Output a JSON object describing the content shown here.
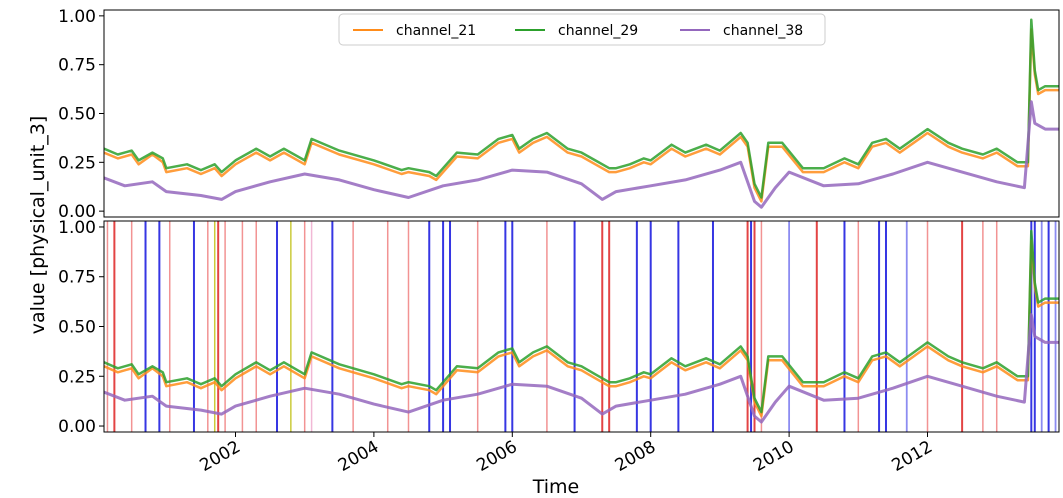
{
  "chart_data": {
    "type": "line",
    "xlabel": "Time",
    "ylabel": "value [physical_unit_3]",
    "xlim": [
      2000.1,
      2013.9
    ],
    "ylim": [
      -0.03,
      1.03
    ],
    "y_ticks": [
      0.0,
      0.25,
      0.5,
      0.75,
      1.0
    ],
    "y_tick_labels": [
      "0.00",
      "0.25",
      "0.50",
      "0.75",
      "1.00"
    ],
    "x_ticks": [
      2002,
      2004,
      2006,
      2008,
      2010,
      2012
    ],
    "x_tick_labels": [
      "2002",
      "2004",
      "2006",
      "2008",
      "2010",
      "2012"
    ],
    "legend_position": "top-center",
    "colors": {
      "channel_21": "#ff8c1a",
      "channel_29": "#2ca02c",
      "channel_38": "#9467bd",
      "marker_light_red": "#f08080",
      "marker_red": "#e03030",
      "marker_blue": "#2020e0",
      "marker_light_blue": "#8080f0",
      "marker_yellow": "#c8c830",
      "marker_pink": "#f0b0d0"
    },
    "series": [
      {
        "name": "channel_21",
        "x": [
          2000.1,
          2000.3,
          2000.5,
          2000.6,
          2000.8,
          2000.95,
          2001.0,
          2001.3,
          2001.5,
          2001.7,
          2001.8,
          2002.0,
          2002.3,
          2002.5,
          2002.7,
          2003.0,
          2003.1,
          2003.5,
          2004.0,
          2004.4,
          2004.5,
          2004.8,
          2004.9,
          2005.2,
          2005.5,
          2005.8,
          2006.0,
          2006.1,
          2006.3,
          2006.5,
          2006.8,
          2007.0,
          2007.2,
          2007.4,
          2007.5,
          2007.7,
          2007.9,
          2008.0,
          2008.3,
          2008.5,
          2008.8,
          2009.0,
          2009.3,
          2009.4,
          2009.5,
          2009.6,
          2009.7,
          2009.9,
          2010.2,
          2010.5,
          2010.8,
          2011.0,
          2011.2,
          2011.4,
          2011.6,
          2011.8,
          2012.0,
          2012.3,
          2012.5,
          2012.8,
          2013.0,
          2013.3,
          2013.45,
          2013.5,
          2013.55,
          2013.6,
          2013.7,
          2013.9
        ],
        "values": [
          0.3,
          0.27,
          0.29,
          0.24,
          0.29,
          0.25,
          0.2,
          0.22,
          0.19,
          0.22,
          0.18,
          0.24,
          0.3,
          0.26,
          0.3,
          0.24,
          0.35,
          0.29,
          0.24,
          0.19,
          0.2,
          0.18,
          0.16,
          0.28,
          0.27,
          0.35,
          0.37,
          0.3,
          0.35,
          0.38,
          0.3,
          0.28,
          0.24,
          0.2,
          0.2,
          0.22,
          0.25,
          0.24,
          0.32,
          0.28,
          0.32,
          0.29,
          0.38,
          0.33,
          0.12,
          0.05,
          0.33,
          0.33,
          0.2,
          0.2,
          0.25,
          0.22,
          0.33,
          0.35,
          0.3,
          0.35,
          0.4,
          0.33,
          0.3,
          0.27,
          0.3,
          0.23,
          0.23,
          0.93,
          0.7,
          0.6,
          0.62,
          0.62
        ]
      },
      {
        "name": "channel_29",
        "x": [
          2000.1,
          2000.3,
          2000.5,
          2000.6,
          2000.8,
          2000.95,
          2001.0,
          2001.3,
          2001.5,
          2001.7,
          2001.8,
          2002.0,
          2002.3,
          2002.5,
          2002.7,
          2003.0,
          2003.1,
          2003.5,
          2004.0,
          2004.4,
          2004.5,
          2004.8,
          2004.9,
          2005.2,
          2005.5,
          2005.8,
          2006.0,
          2006.1,
          2006.3,
          2006.5,
          2006.8,
          2007.0,
          2007.2,
          2007.4,
          2007.5,
          2007.7,
          2007.9,
          2008.0,
          2008.3,
          2008.5,
          2008.8,
          2009.0,
          2009.3,
          2009.4,
          2009.5,
          2009.6,
          2009.7,
          2009.9,
          2010.2,
          2010.5,
          2010.8,
          2011.0,
          2011.2,
          2011.4,
          2011.6,
          2011.8,
          2012.0,
          2012.3,
          2012.5,
          2012.8,
          2013.0,
          2013.3,
          2013.45,
          2013.5,
          2013.55,
          2013.6,
          2013.7,
          2013.9
        ],
        "values": [
          0.32,
          0.29,
          0.31,
          0.26,
          0.3,
          0.27,
          0.22,
          0.24,
          0.21,
          0.24,
          0.2,
          0.26,
          0.32,
          0.28,
          0.32,
          0.26,
          0.37,
          0.31,
          0.26,
          0.21,
          0.22,
          0.2,
          0.18,
          0.3,
          0.29,
          0.37,
          0.39,
          0.32,
          0.37,
          0.4,
          0.32,
          0.3,
          0.26,
          0.22,
          0.22,
          0.24,
          0.27,
          0.26,
          0.34,
          0.3,
          0.34,
          0.31,
          0.4,
          0.35,
          0.14,
          0.07,
          0.35,
          0.35,
          0.22,
          0.22,
          0.27,
          0.24,
          0.35,
          0.37,
          0.32,
          0.37,
          0.42,
          0.35,
          0.32,
          0.29,
          0.32,
          0.25,
          0.25,
          0.98,
          0.72,
          0.62,
          0.64,
          0.64
        ]
      },
      {
        "name": "channel_38",
        "x": [
          2000.1,
          2000.4,
          2000.8,
          2001.0,
          2001.5,
          2001.8,
          2002.0,
          2002.5,
          2003.0,
          2003.5,
          2004.0,
          2004.5,
          2005.0,
          2005.5,
          2006.0,
          2006.5,
          2007.0,
          2007.3,
          2007.5,
          2008.0,
          2008.5,
          2009.0,
          2009.3,
          2009.5,
          2009.6,
          2009.8,
          2010.0,
          2010.5,
          2011.0,
          2011.5,
          2012.0,
          2012.5,
          2013.0,
          2013.4,
          2013.5,
          2013.55,
          2013.6,
          2013.7,
          2013.9
        ],
        "values": [
          0.17,
          0.13,
          0.15,
          0.1,
          0.08,
          0.06,
          0.1,
          0.15,
          0.19,
          0.16,
          0.11,
          0.07,
          0.13,
          0.16,
          0.21,
          0.2,
          0.14,
          0.06,
          0.1,
          0.13,
          0.16,
          0.21,
          0.25,
          0.05,
          0.02,
          0.12,
          0.2,
          0.13,
          0.14,
          0.19,
          0.25,
          0.2,
          0.15,
          0.12,
          0.56,
          0.45,
          0.44,
          0.42,
          0.42
        ]
      }
    ],
    "event_markers": [
      {
        "x": 2000.15,
        "style": "light_red"
      },
      {
        "x": 2000.25,
        "style": "red"
      },
      {
        "x": 2000.5,
        "style": "light_red"
      },
      {
        "x": 2000.7,
        "style": "blue"
      },
      {
        "x": 2000.9,
        "style": "blue"
      },
      {
        "x": 2001.05,
        "style": "light_red"
      },
      {
        "x": 2001.4,
        "style": "blue"
      },
      {
        "x": 2001.6,
        "style": "light_red"
      },
      {
        "x": 2001.7,
        "style": "yellow"
      },
      {
        "x": 2001.75,
        "style": "red"
      },
      {
        "x": 2001.85,
        "style": "light_red"
      },
      {
        "x": 2002.1,
        "style": "light_red"
      },
      {
        "x": 2002.3,
        "style": "light_red"
      },
      {
        "x": 2002.6,
        "style": "blue"
      },
      {
        "x": 2002.8,
        "style": "yellow"
      },
      {
        "x": 2003.0,
        "style": "light_red"
      },
      {
        "x": 2003.1,
        "style": "pink"
      },
      {
        "x": 2003.4,
        "style": "blue"
      },
      {
        "x": 2003.7,
        "style": "light_red"
      },
      {
        "x": 2004.2,
        "style": "light_red"
      },
      {
        "x": 2004.5,
        "style": "light_red"
      },
      {
        "x": 2004.8,
        "style": "blue"
      },
      {
        "x": 2005.0,
        "style": "blue"
      },
      {
        "x": 2005.1,
        "style": "blue"
      },
      {
        "x": 2005.5,
        "style": "light_red"
      },
      {
        "x": 2005.9,
        "style": "blue"
      },
      {
        "x": 2006.0,
        "style": "blue"
      },
      {
        "x": 2006.5,
        "style": "light_red"
      },
      {
        "x": 2006.9,
        "style": "blue"
      },
      {
        "x": 2007.3,
        "style": "red"
      },
      {
        "x": 2007.4,
        "style": "red"
      },
      {
        "x": 2007.8,
        "style": "blue"
      },
      {
        "x": 2008.0,
        "style": "blue"
      },
      {
        "x": 2008.4,
        "style": "blue"
      },
      {
        "x": 2008.9,
        "style": "blue"
      },
      {
        "x": 2009.4,
        "style": "red"
      },
      {
        "x": 2009.45,
        "style": "blue"
      },
      {
        "x": 2009.5,
        "style": "red"
      },
      {
        "x": 2009.6,
        "style": "light_red"
      },
      {
        "x": 2010.0,
        "style": "light_blue"
      },
      {
        "x": 2010.4,
        "style": "red"
      },
      {
        "x": 2010.8,
        "style": "blue"
      },
      {
        "x": 2011.0,
        "style": "light_red"
      },
      {
        "x": 2011.3,
        "style": "blue"
      },
      {
        "x": 2011.4,
        "style": "blue"
      },
      {
        "x": 2011.7,
        "style": "light_blue"
      },
      {
        "x": 2012.0,
        "style": "light_red"
      },
      {
        "x": 2012.5,
        "style": "red"
      },
      {
        "x": 2012.8,
        "style": "light_red"
      },
      {
        "x": 2013.0,
        "style": "light_red"
      },
      {
        "x": 2013.5,
        "style": "blue"
      },
      {
        "x": 2013.55,
        "style": "blue"
      },
      {
        "x": 2013.65,
        "style": "light_blue"
      },
      {
        "x": 2013.75,
        "style": "blue"
      },
      {
        "x": 2013.85,
        "style": "light_blue"
      }
    ]
  }
}
